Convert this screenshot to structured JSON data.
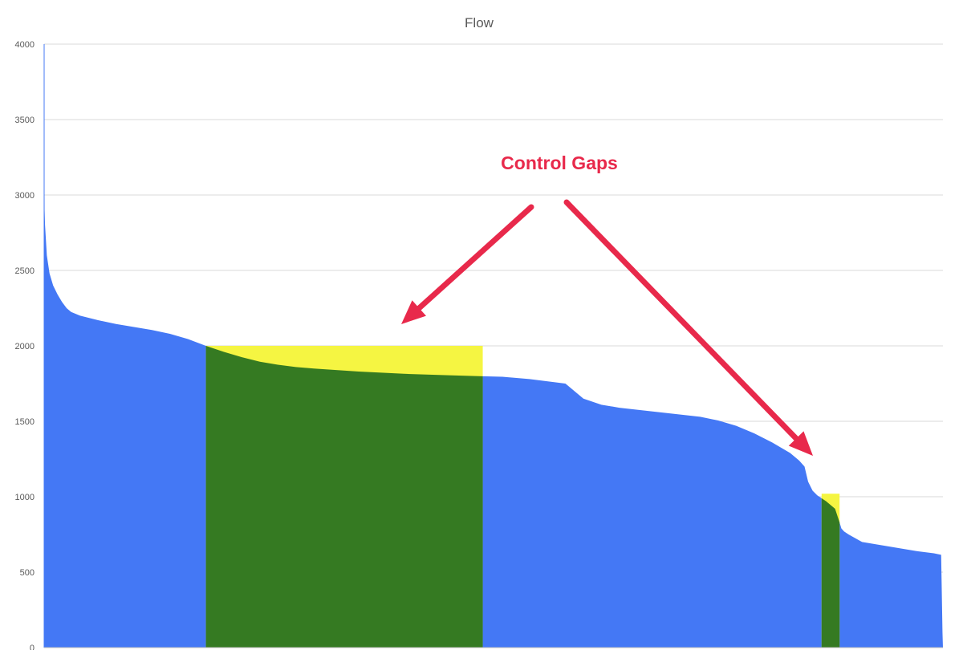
{
  "chart_data": {
    "type": "area",
    "title": "Flow",
    "xlabel": "",
    "ylabel": "",
    "ylim": [
      0,
      4000
    ],
    "yticks": [
      0,
      500,
      1000,
      1500,
      2000,
      2500,
      3000,
      3500,
      4000
    ],
    "grid": true,
    "legend": "none",
    "x_range": [
      0,
      100
    ],
    "series": [
      {
        "color": "#4478f5",
        "x": [
          0,
          0.05,
          0.1,
          0.3,
          0.6,
          1,
          1.5,
          2,
          2.5,
          3,
          4,
          6,
          8,
          10,
          12,
          14,
          16,
          18,
          20,
          22,
          24,
          26,
          28,
          30,
          32,
          35,
          40,
          45,
          48,
          51,
          54,
          58,
          60,
          62,
          64,
          67,
          70,
          73,
          75,
          77,
          79,
          81,
          83,
          84,
          84.6,
          85,
          85.5,
          86,
          87,
          88,
          88.5,
          88.7,
          89,
          89.5,
          91,
          93,
          95,
          97,
          99,
          99.8,
          99.95,
          100
        ],
        "values": [
          4000,
          2900,
          2800,
          2600,
          2480,
          2400,
          2340,
          2290,
          2250,
          2225,
          2200,
          2170,
          2145,
          2125,
          2105,
          2080,
          2045,
          2000,
          1960,
          1925,
          1895,
          1875,
          1860,
          1850,
          1842,
          1830,
          1815,
          1805,
          1800,
          1795,
          1780,
          1750,
          1650,
          1610,
          1590,
          1570,
          1550,
          1530,
          1505,
          1470,
          1420,
          1360,
          1290,
          1240,
          1200,
          1100,
          1040,
          1010,
          970,
          920,
          830,
          790,
          770,
          750,
          700,
          680,
          660,
          640,
          625,
          615,
          100,
          0
        ]
      }
    ],
    "highlights": [
      {
        "x_start": 18,
        "x_end": 48.8,
        "target": 2000,
        "gap_color": "#f5f542",
        "fill_color": "#357a22"
      },
      {
        "x_start": 86.5,
        "x_end": 88.5,
        "target": 1020,
        "gap_color": "#f5f542",
        "fill_color": "#357a22"
      }
    ],
    "annotation": {
      "text": "Control Gaps",
      "color": "#e8294b"
    }
  }
}
